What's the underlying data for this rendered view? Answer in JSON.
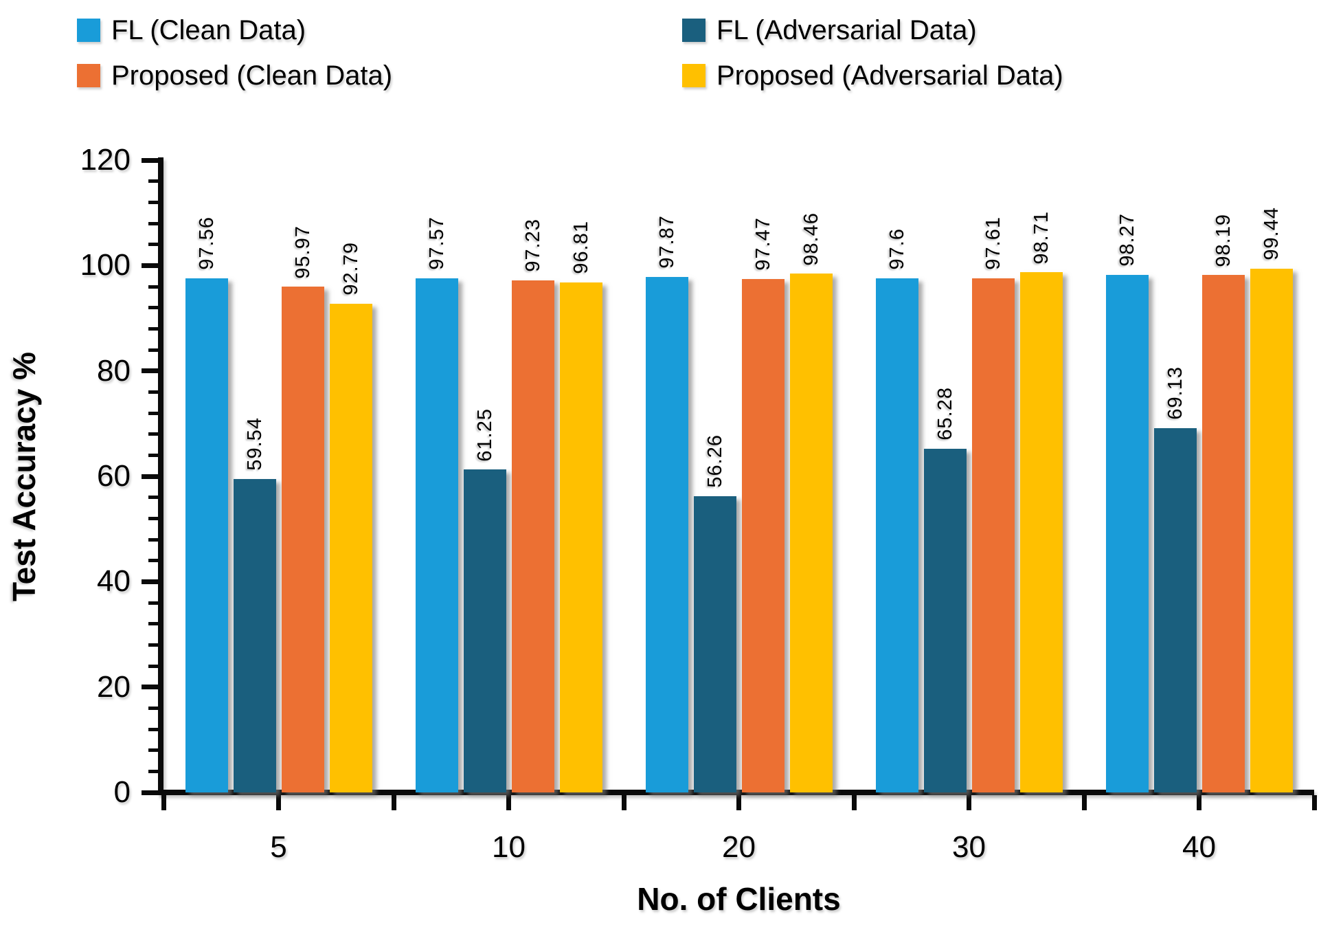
{
  "legend": {
    "items": [
      {
        "label": "FL (Clean Data)"
      },
      {
        "label": "FL (Adversarial Data)"
      },
      {
        "label": "Proposed (Clean Data)"
      },
      {
        "label": "Proposed (Adversarial Data)"
      }
    ]
  },
  "chart_data": {
    "type": "bar",
    "title": "",
    "xlabel": "No. of Clients",
    "ylabel": "Test Accuracy %",
    "categories": [
      "5",
      "10",
      "20",
      "30",
      "40"
    ],
    "series": [
      {
        "name": "FL (Clean Data)",
        "color": "#199CD9",
        "values": [
          97.56,
          97.57,
          97.87,
          97.6,
          98.27
        ]
      },
      {
        "name": "FL (Adversarial Data)",
        "color": "#1A5F7E",
        "values": [
          59.54,
          61.25,
          56.26,
          65.28,
          69.13
        ]
      },
      {
        "name": "Proposed (Clean Data)",
        "color": "#EC7033",
        "values": [
          95.97,
          97.23,
          97.47,
          97.61,
          98.19
        ]
      },
      {
        "name": "Proposed (Adversarial Data)",
        "color": "#FFC000",
        "values": [
          92.79,
          96.81,
          98.46,
          98.71,
          99.44
        ]
      }
    ],
    "ylim": [
      0,
      120
    ],
    "ytick_major_unit": 20,
    "ytick_minor_unit": 4,
    "yticks": [
      "0",
      "20",
      "40",
      "60",
      "80",
      "100",
      "120"
    ],
    "grid": false,
    "legend_position": "top",
    "data_labels_rotated": true
  }
}
